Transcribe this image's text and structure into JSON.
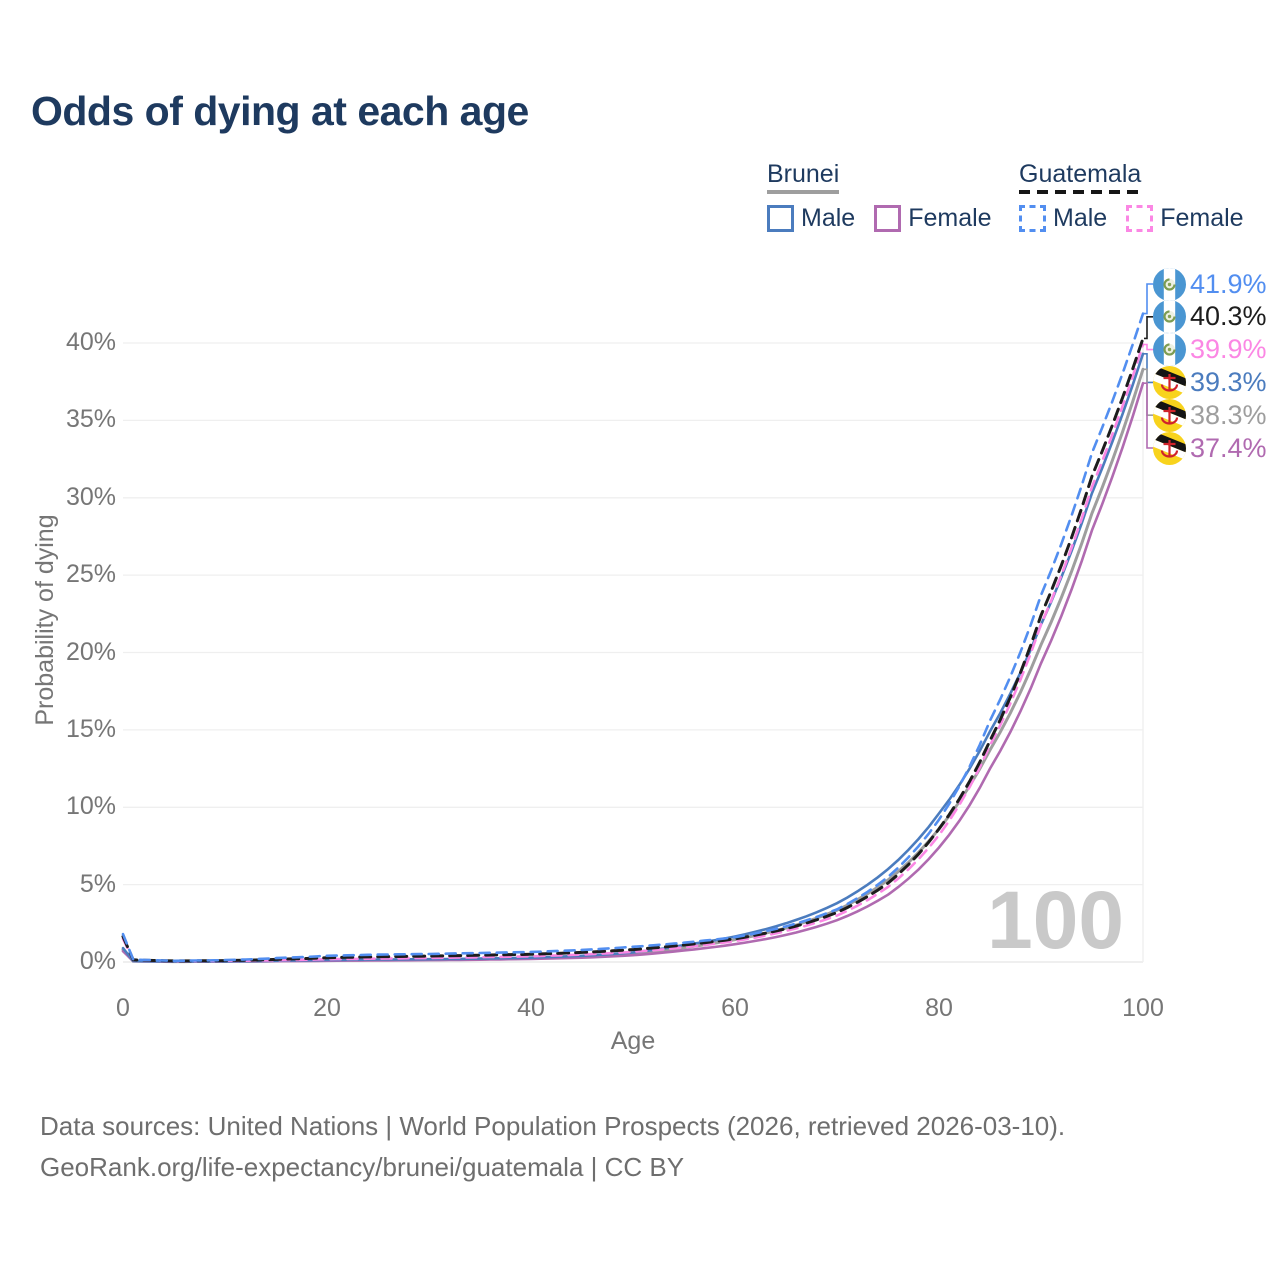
{
  "title": "Odds of dying at each age",
  "legend": {
    "groups": [
      {
        "name": "Brunei",
        "line_style": "solid",
        "underline_color": "#9e9e9e",
        "items": [
          {
            "label": "Male",
            "color": "#4b7cbe"
          },
          {
            "label": "Female",
            "color": "#b06ab0"
          }
        ]
      },
      {
        "name": "Guatemala",
        "line_style": "dashed",
        "underline_color": "#161616",
        "items": [
          {
            "label": "Male",
            "color": "#528ef0"
          },
          {
            "label": "Female",
            "color": "#fb87e4"
          }
        ]
      }
    ]
  },
  "axes": {
    "x_label": "Age",
    "y_label": "Probability of dying",
    "x_tick_labels": [
      "0",
      "20",
      "40",
      "60",
      "80",
      "100"
    ],
    "y_tick_labels": [
      "0%",
      "5%",
      "10%",
      "15%",
      "20%",
      "25%",
      "30%",
      "35%",
      "40%"
    ]
  },
  "annotations": {
    "age_marker": "100"
  },
  "end_labels": [
    {
      "value": "41.9%",
      "color": "#528ef0",
      "flag": "guatemala",
      "series": "Guatemala Male"
    },
    {
      "value": "40.3%",
      "color": "#1d1d1d",
      "flag": "guatemala",
      "series": "Guatemala"
    },
    {
      "value": "39.9%",
      "color": "#fb87e4",
      "flag": "guatemala",
      "series": "Guatemala Female"
    },
    {
      "value": "39.3%",
      "color": "#4b7cbe",
      "flag": "brunei",
      "series": "Brunei Male"
    },
    {
      "value": "38.3%",
      "color": "#9e9e9e",
      "flag": "brunei",
      "series": "Brunei"
    },
    {
      "value": "37.4%",
      "color": "#b06ab0",
      "flag": "brunei",
      "series": "Brunei Female"
    }
  ],
  "footer": {
    "line1": "Data sources: United Nations | World Population Prospects (2026, retrieved 2026-03-10).",
    "line2": "GeoRank.org/life-expectancy/brunei/guatemala | CC BY"
  },
  "chart_data": {
    "type": "line",
    "title": "Odds of dying at each age",
    "xlabel": "Age",
    "ylabel": "Probability of dying",
    "xlim": [
      0,
      100
    ],
    "ylim_pct": [
      0,
      44
    ],
    "x_ticks": [
      0,
      20,
      40,
      60,
      80,
      100
    ],
    "y_ticks_pct": [
      0,
      5,
      10,
      15,
      20,
      25,
      30,
      35,
      40
    ],
    "grid": "horizontal",
    "legend_position": "top-right",
    "ages": [
      0,
      1,
      5,
      10,
      15,
      20,
      25,
      30,
      35,
      40,
      45,
      50,
      55,
      60,
      65,
      70,
      75,
      80,
      85,
      90,
      95,
      100
    ],
    "series": [
      {
        "name": "Brunei Male",
        "country": "Brunei",
        "dash": "solid",
        "is_total": false,
        "color": "#4b7cbe",
        "end_label": "39.3%",
        "values_pct": [
          0.9,
          0.06,
          0.03,
          0.04,
          0.08,
          0.13,
          0.16,
          0.18,
          0.22,
          0.28,
          0.4,
          0.62,
          1.1,
          1.65,
          2.5,
          3.8,
          6.0,
          9.6,
          14.9,
          21.8,
          30.3,
          39.3
        ]
      },
      {
        "name": "Brunei Female",
        "country": "Brunei",
        "dash": "solid",
        "is_total": false,
        "color": "#b06ab0",
        "end_label": "37.4%",
        "values_pct": [
          0.7,
          0.05,
          0.023,
          0.03,
          0.05,
          0.08,
          0.1,
          0.12,
          0.15,
          0.2,
          0.28,
          0.44,
          0.75,
          1.15,
          1.75,
          2.7,
          4.35,
          7.4,
          12.5,
          19.3,
          27.9,
          37.4
        ]
      },
      {
        "name": "Brunei",
        "country": "Brunei",
        "dash": "solid",
        "is_total": true,
        "color": "#9e9e9e",
        "end_label": "38.3%",
        "values_pct": [
          0.8,
          0.055,
          0.027,
          0.035,
          0.065,
          0.1,
          0.13,
          0.15,
          0.18,
          0.24,
          0.34,
          0.53,
          0.93,
          1.45,
          2.2,
          3.35,
          5.3,
          8.6,
          13.7,
          20.5,
          29.0,
          38.3
        ]
      },
      {
        "name": "Guatemala Male",
        "country": "Guatemala",
        "dash": "dashed",
        "is_total": false,
        "color": "#528ef0",
        "end_label": "41.9%",
        "values_pct": [
          1.8,
          0.16,
          0.08,
          0.12,
          0.25,
          0.4,
          0.48,
          0.52,
          0.58,
          0.65,
          0.78,
          0.98,
          1.25,
          1.6,
          2.3,
          3.4,
          5.5,
          9.2,
          15.6,
          23.7,
          32.9,
          41.9
        ]
      },
      {
        "name": "Guatemala Female",
        "country": "Guatemala",
        "dash": "dashed",
        "is_total": false,
        "color": "#fb87e4",
        "end_label": "39.9%",
        "values_pct": [
          1.5,
          0.12,
          0.06,
          0.07,
          0.11,
          0.18,
          0.22,
          0.26,
          0.31,
          0.37,
          0.48,
          0.65,
          0.95,
          1.35,
          2.0,
          3.0,
          4.85,
          8.2,
          14.0,
          21.8,
          30.7,
          39.9
        ]
      },
      {
        "name": "Guatemala",
        "country": "Guatemala",
        "dash": "dashed",
        "is_total": true,
        "color": "#1d1d1d",
        "end_label": "40.3%",
        "values_pct": [
          1.65,
          0.14,
          0.07,
          0.09,
          0.17,
          0.28,
          0.34,
          0.38,
          0.44,
          0.5,
          0.62,
          0.8,
          1.1,
          1.5,
          2.15,
          3.2,
          5.1,
          8.6,
          14.3,
          22.4,
          31.4,
          40.3
        ]
      }
    ]
  }
}
